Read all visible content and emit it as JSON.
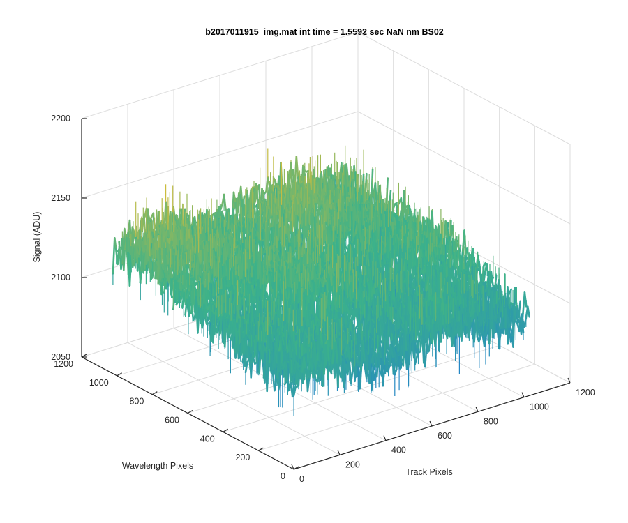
{
  "chart_data": {
    "type": "surface",
    "title": "b2017011915_img.mat int time = 1.5592 sec  NaN nm BS02",
    "xlabel": "Track Pixels",
    "ylabel": "Wavelength Pixels",
    "zlabel": "Signal (ADU)",
    "xlim": [
      0,
      1200
    ],
    "ylim": [
      0,
      1200
    ],
    "zlim": [
      2050,
      2200
    ],
    "xticks": [
      "0",
      "200",
      "400",
      "600",
      "800",
      "1000",
      "1200"
    ],
    "yticks": [
      "0",
      "200",
      "400",
      "600",
      "800",
      "1000",
      "1200"
    ],
    "zticks": [
      "2050",
      "2100",
      "2150",
      "2200"
    ],
    "grid": true,
    "colormap": "parula",
    "surface": {
      "track_range": [
        1,
        1024
      ],
      "wavelength_range": [
        1,
        1024
      ],
      "mean_level_near_wavelength_0": 2103,
      "mean_level_near_wavelength_1024": 2130,
      "noise_low": 2065,
      "noise_high": 2175,
      "colors": {
        "low": "#1f7fd0",
        "mid": "#3cb28a",
        "high": "#f2bf2a"
      }
    }
  }
}
